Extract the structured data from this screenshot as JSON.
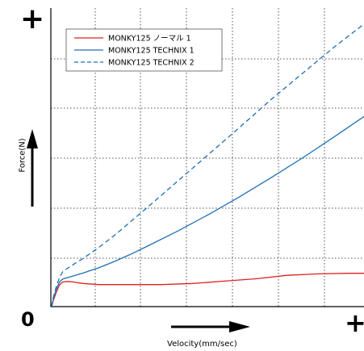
{
  "chart_data": {
    "type": "line",
    "xlabel": "Velocity(mm/sec)",
    "ylabel": "Force(N)",
    "origin_label": "0",
    "x_end_label": "+",
    "y_end_label": "+",
    "grid": true,
    "legend_position": "top-left",
    "xlim": [
      0,
      100
    ],
    "ylim": [
      0,
      100
    ],
    "series": [
      {
        "name": "MONKY125 ノーマル 1",
        "color": "#e02020",
        "dash": "solid",
        "x": [
          0,
          0.5,
          1.5,
          2.5,
          3.5,
          5,
          7,
          10,
          15,
          25,
          35,
          45,
          55,
          65,
          75,
          85,
          95,
          100
        ],
        "y": [
          0,
          2,
          5,
          7.5,
          8.5,
          8.7,
          8.5,
          8,
          7.6,
          7.6,
          7.6,
          8,
          8.8,
          9.6,
          10.8,
          11.3,
          11.5,
          11.5
        ]
      },
      {
        "name": "MONKY125 TECHNIX 1",
        "color": "#1f6fb5",
        "dash": "solid",
        "x": [
          0,
          0.5,
          1.5,
          2.5,
          3.5,
          5,
          7,
          10,
          15,
          20,
          25,
          30,
          40,
          50,
          60,
          70,
          80,
          90,
          100
        ],
        "y": [
          0,
          2.5,
          6,
          8.5,
          9.5,
          10,
          10.6,
          11.6,
          13.4,
          15.6,
          18,
          20.6,
          26,
          31.8,
          38,
          44.6,
          51.4,
          58.6,
          66
        ]
      },
      {
        "name": "MONKY125 TECHNIX 2",
        "color": "#1f6fb5",
        "dash": "dashed",
        "x": [
          0,
          0.5,
          1.5,
          2.5,
          3.5,
          5,
          7,
          10,
          15,
          20,
          30,
          40,
          50,
          60,
          70,
          80,
          90,
          100
        ],
        "y": [
          0,
          3,
          7,
          10,
          12,
          13.2,
          14.6,
          16.6,
          20.4,
          24.6,
          33.8,
          43.2,
          52.6,
          62,
          71.6,
          80.6,
          89.6,
          98
        ]
      }
    ]
  }
}
